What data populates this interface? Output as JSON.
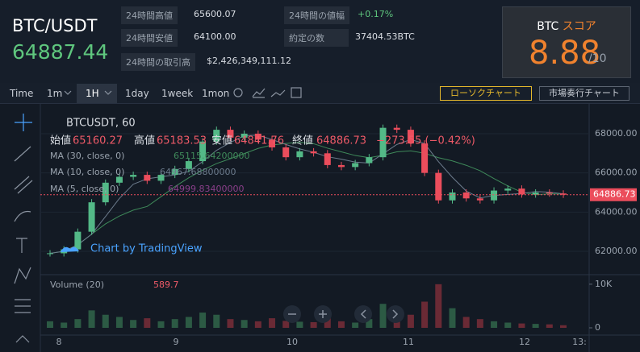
{
  "header": {
    "pair": "BTC/USDT",
    "price": "64887.44"
  },
  "stats": [
    {
      "label": "24時間高値",
      "value": "65600.07"
    },
    {
      "label": "24時間安値",
      "value": "64100.00"
    },
    {
      "label": "24時間の取引高",
      "value": "$2,426,349,111.12"
    },
    {
      "label": "24時間の値幅",
      "value": "+0.17%"
    },
    {
      "label": "約定の数",
      "value": "37404.53BTC"
    }
  ],
  "score": {
    "coin": "BTC",
    "label": "スコア",
    "value": "8.88",
    "max": "/10"
  },
  "toolbar": {
    "intervals": [
      "Time",
      "1m",
      "1H",
      "1day",
      "1week",
      "1mon"
    ],
    "buttons": [
      "ローソクチャート",
      "市場奏行チャート"
    ]
  },
  "legend": {
    "symbol": "BTCUSDT, 60",
    "ohlc": [
      {
        "label": "始値",
        "value": "65160.27"
      },
      {
        "label": "高値",
        "value": "65183.53"
      },
      {
        "label": "安値",
        "value": "64841.76"
      },
      {
        "label": "終値",
        "value": "64886.73"
      }
    ],
    "change": "−273.55 (−0.42%)",
    "ma": [
      {
        "label": "MA (30, close, 0)",
        "value": "65115.64200000"
      },
      {
        "label": "MA (10, close, 0)",
        "value": "64967.68800000"
      },
      {
        "label": "MA (5, close, 0)",
        "value": "64999.83400000"
      }
    ],
    "volume": {
      "label": "Volume (20)",
      "value": "589.7"
    }
  },
  "watermark": "Chart by TradingView",
  "chart": {
    "ylim": [
      60850,
      69560
    ],
    "price_ticks": [
      {
        "value": 68000,
        "label": "68000.00"
      },
      {
        "value": 66000,
        "label": "66000.00"
      },
      {
        "value": 64000,
        "label": "64000.00"
      },
      {
        "value": 62000,
        "label": "62000.00"
      }
    ],
    "last": {
      "value": 64886.73,
      "label": "64886.73"
    },
    "closes": [
      61900,
      62100,
      63000,
      64500,
      65500,
      65800,
      65900,
      65600,
      65900,
      66200,
      66600,
      67600,
      68200,
      67800,
      68000,
      67700,
      67300,
      66800,
      67100,
      67000,
      66400,
      66300,
      66500,
      66800,
      68300,
      68200,
      67500,
      66000,
      64600,
      65000,
      64700,
      64600,
      65100,
      65200,
      64900,
      65000,
      64950,
      64887
    ],
    "volumes": [
      1500,
      1200,
      2000,
      4000,
      3000,
      2500,
      1800,
      2200,
      1500,
      2000,
      2500,
      3500,
      3000,
      2000,
      1800,
      1500,
      2200,
      1600,
      1400,
      1300,
      2500,
      1500,
      1200,
      2000,
      5500,
      4000,
      3000,
      6000,
      10000,
      4500,
      2500,
      2000,
      1500,
      1200,
      1000,
      900,
      800,
      600
    ],
    "vlim": [
      0,
      12000
    ],
    "volume_ticks": [
      {
        "value": 10000,
        "label": "10K"
      },
      0
    ],
    "x_ticks": [
      "8",
      "9",
      "10",
      "11",
      "12",
      "13:"
    ]
  }
}
